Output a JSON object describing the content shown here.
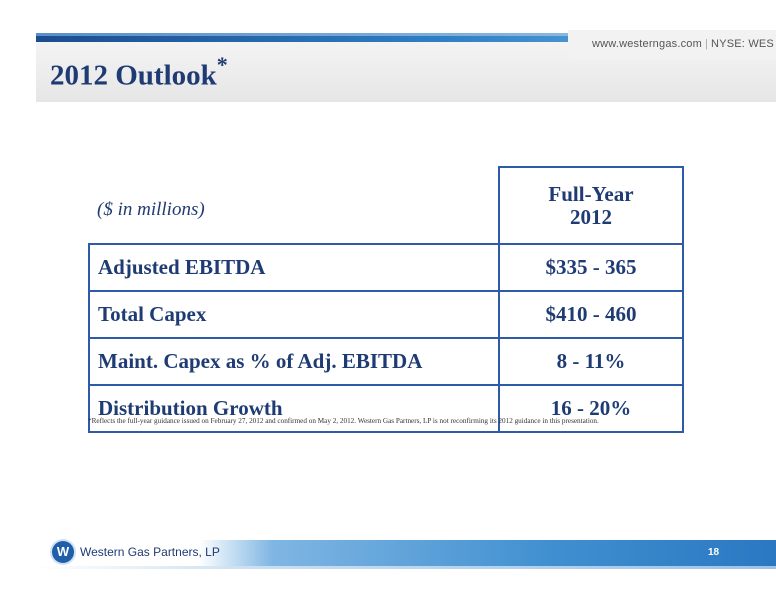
{
  "header": {
    "website": "www.westerngas.com",
    "ticker": "NYSE: WES",
    "title": "2012 Outlook",
    "title_mark": "*"
  },
  "table": {
    "unit_label": "($ in millions)",
    "column_header_line1": "Full-Year",
    "column_header_line2": "2012",
    "rows": [
      {
        "label": "Adjusted EBITDA",
        "value": "$335 - 365"
      },
      {
        "label": "Total Capex",
        "value": "$410 - 460"
      },
      {
        "label": "Maint. Capex as % of Adj. EBITDA",
        "value": "8 - 11%"
      },
      {
        "label": "Distribution Growth",
        "value": "16 - 20%"
      }
    ]
  },
  "footnote": "*Reflects the full-year guidance issued on February 27, 2012 and confirmed on May 2, 2012. Western Gas Partners, LP is not reconfirming its 2012  guidance in this presentation.",
  "footer": {
    "logo_letter": "W",
    "company": "Western Gas Partners, LP",
    "page_number": "18"
  },
  "colors": {
    "title_navy": "#1f3b73",
    "table_border_blue": "#2f5aa8",
    "footer_blue": "#2a78c2"
  }
}
